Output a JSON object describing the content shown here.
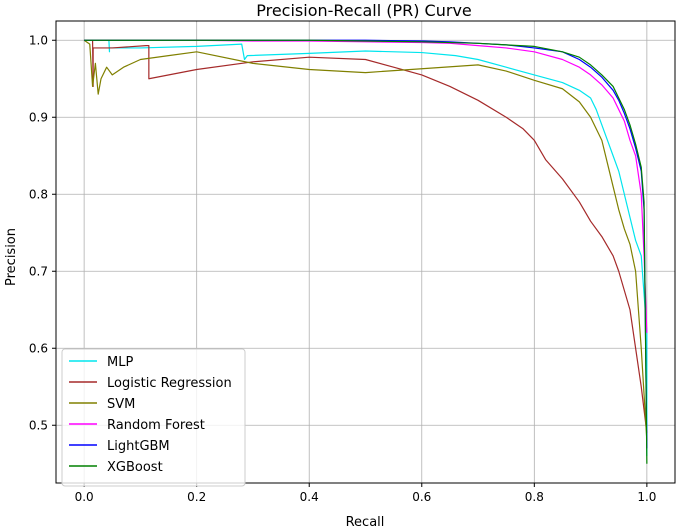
{
  "chart_data": {
    "type": "line",
    "title": "Precision-Recall (PR) Curve",
    "xlabel": "Recall",
    "ylabel": "Precision",
    "xlim": [
      -0.05,
      1.05
    ],
    "ylim": [
      0.425,
      1.025
    ],
    "xticks": [
      0.0,
      0.2,
      0.4,
      0.6,
      0.8,
      1.0
    ],
    "xtick_labels": [
      "0.0",
      "0.2",
      "0.4",
      "0.6",
      "0.8",
      "1.0"
    ],
    "yticks": [
      0.5,
      0.6,
      0.7,
      0.8,
      0.9,
      1.0
    ],
    "ytick_labels": [
      "0.5",
      "0.6",
      "0.7",
      "0.8",
      "0.9",
      "1.0"
    ],
    "grid": true,
    "legend_position": "lower-left",
    "series": [
      {
        "name": "MLP",
        "color": "#00e5ee",
        "x": [
          0.0,
          0.044,
          0.045,
          0.045,
          0.1,
          0.2,
          0.28,
          0.285,
          0.29,
          0.4,
          0.5,
          0.6,
          0.66,
          0.7,
          0.75,
          0.8,
          0.85,
          0.88,
          0.9,
          0.91,
          0.92,
          0.93,
          0.94,
          0.95,
          0.96,
          0.97,
          0.98,
          0.99,
          1.0,
          1.0
        ],
        "y": [
          1.0,
          1.0,
          0.985,
          0.99,
          0.99,
          0.992,
          0.995,
          0.975,
          0.98,
          0.983,
          0.986,
          0.984,
          0.98,
          0.975,
          0.965,
          0.955,
          0.945,
          0.935,
          0.925,
          0.91,
          0.89,
          0.87,
          0.85,
          0.83,
          0.8,
          0.77,
          0.74,
          0.72,
          0.62,
          0.46
        ]
      },
      {
        "name": "Logistic Regression",
        "color": "#a52a2a",
        "x": [
          0.0,
          0.015,
          0.016,
          0.016,
          0.05,
          0.11,
          0.115,
          0.115,
          0.2,
          0.3,
          0.4,
          0.5,
          0.55,
          0.6,
          0.65,
          0.7,
          0.75,
          0.78,
          0.8,
          0.82,
          0.85,
          0.88,
          0.9,
          0.92,
          0.94,
          0.95,
          0.96,
          0.97,
          0.98,
          0.99,
          1.0
        ],
        "y": [
          1.0,
          1.0,
          0.94,
          0.99,
          0.99,
          0.993,
          0.993,
          0.95,
          0.962,
          0.972,
          0.978,
          0.975,
          0.965,
          0.955,
          0.94,
          0.922,
          0.9,
          0.885,
          0.87,
          0.845,
          0.82,
          0.79,
          0.765,
          0.745,
          0.72,
          0.7,
          0.675,
          0.65,
          0.6,
          0.55,
          0.49
        ]
      },
      {
        "name": "SVM",
        "color": "#808000",
        "x": [
          0.0,
          0.01,
          0.015,
          0.02,
          0.025,
          0.03,
          0.04,
          0.05,
          0.07,
          0.1,
          0.15,
          0.2,
          0.3,
          0.4,
          0.5,
          0.6,
          0.7,
          0.75,
          0.8,
          0.85,
          0.88,
          0.9,
          0.92,
          0.93,
          0.94,
          0.95,
          0.96,
          0.97,
          0.98,
          0.99,
          1.0
        ],
        "y": [
          1.0,
          0.995,
          0.94,
          0.97,
          0.93,
          0.95,
          0.965,
          0.955,
          0.965,
          0.975,
          0.98,
          0.985,
          0.97,
          0.962,
          0.958,
          0.963,
          0.968,
          0.96,
          0.948,
          0.937,
          0.92,
          0.9,
          0.87,
          0.84,
          0.81,
          0.78,
          0.755,
          0.735,
          0.7,
          0.6,
          0.48
        ]
      },
      {
        "name": "Random Forest",
        "color": "#ff00ff",
        "x": [
          0.0,
          0.1,
          0.2,
          0.3,
          0.4,
          0.5,
          0.6,
          0.65,
          0.7,
          0.75,
          0.8,
          0.85,
          0.88,
          0.9,
          0.92,
          0.94,
          0.95,
          0.96,
          0.97,
          0.98,
          0.99,
          0.995,
          1.0
        ],
        "y": [
          1.0,
          1.0,
          1.0,
          0.999,
          0.999,
          0.998,
          0.997,
          0.996,
          0.993,
          0.99,
          0.985,
          0.975,
          0.965,
          0.955,
          0.942,
          0.925,
          0.91,
          0.895,
          0.87,
          0.85,
          0.8,
          0.72,
          0.62
        ]
      },
      {
        "name": "LightGBM",
        "color": "#0000ff",
        "x": [
          0.0,
          0.1,
          0.2,
          0.3,
          0.4,
          0.5,
          0.6,
          0.65,
          0.7,
          0.75,
          0.8,
          0.85,
          0.88,
          0.9,
          0.92,
          0.94,
          0.95,
          0.96,
          0.97,
          0.98,
          0.99,
          0.995,
          1.0
        ],
        "y": [
          1.0,
          1.0,
          1.0,
          1.0,
          1.0,
          1.0,
          0.999,
          0.998,
          0.996,
          0.994,
          0.99,
          0.985,
          0.975,
          0.965,
          0.952,
          0.935,
          0.922,
          0.905,
          0.885,
          0.86,
          0.83,
          0.78,
          0.47
        ]
      },
      {
        "name": "XGBoost",
        "color": "#008000",
        "x": [
          0.0,
          0.1,
          0.2,
          0.3,
          0.4,
          0.5,
          0.6,
          0.65,
          0.7,
          0.75,
          0.8,
          0.85,
          0.88,
          0.9,
          0.92,
          0.94,
          0.95,
          0.96,
          0.97,
          0.98,
          0.99,
          0.995,
          1.0
        ],
        "y": [
          1.0,
          1.0,
          1.0,
          1.0,
          1.0,
          0.999,
          0.998,
          0.997,
          0.996,
          0.994,
          0.992,
          0.985,
          0.978,
          0.968,
          0.955,
          0.94,
          0.925,
          0.91,
          0.89,
          0.865,
          0.835,
          0.79,
          0.45
        ]
      }
    ]
  }
}
